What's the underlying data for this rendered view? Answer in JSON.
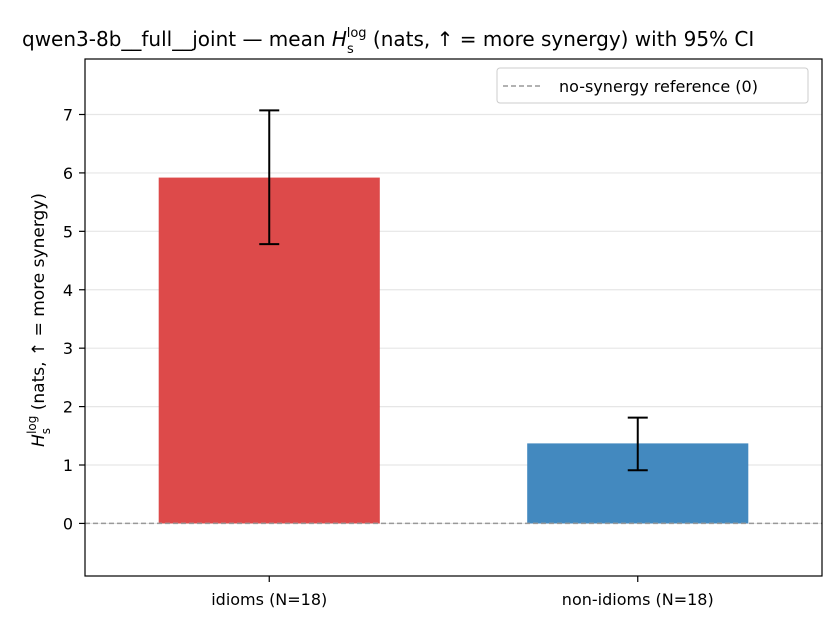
{
  "chart_data": {
    "type": "bar",
    "title_pre": "qwen3-8b__full__joint — mean ",
    "title_post": " (nats, ↑ = more synergy) with 95% CI",
    "metric_symbol": "H",
    "metric_sub": "s",
    "metric_sup": "log",
    "ylabel_post": " (nats, ↑ = more synergy)",
    "xlabel": "",
    "categories": [
      "idioms (N=18)",
      "non-idioms (N=18)"
    ],
    "values": [
      5.92,
      1.37
    ],
    "ci_low": [
      4.78,
      0.91
    ],
    "ci_high": [
      7.07,
      1.81
    ],
    "colors": [
      "#dd4a4a",
      "#4389bf"
    ],
    "ylim": [
      -0.9,
      7.95
    ],
    "yticks": [
      0,
      1,
      2,
      3,
      4,
      5,
      6,
      7
    ],
    "grid": true,
    "reference_line": {
      "value": 0,
      "label": "no-synergy reference (0)",
      "color": "#999999"
    },
    "legend_placement": "top-right"
  }
}
